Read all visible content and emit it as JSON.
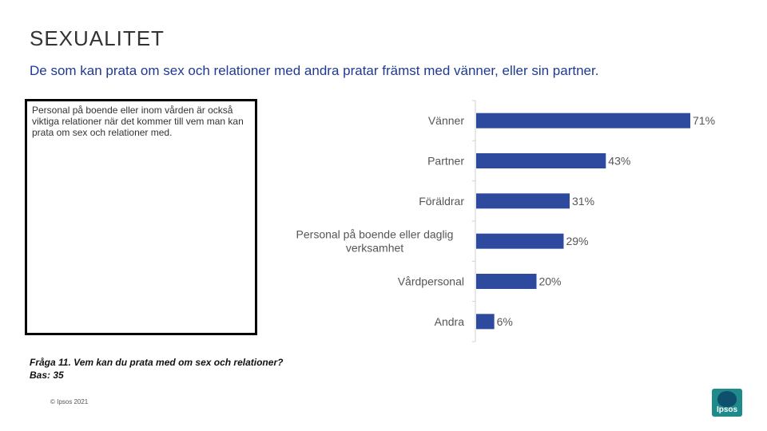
{
  "title": "SEXUALITET",
  "subtitle": "De som kan prata om sex och relationer med andra pratar främst med vänner, eller sin partner.",
  "note": "Personal på boende eller inom vården är också viktiga relationer när det kommer till vem man kan prata om sex och relationer med.",
  "question": {
    "line1": "Fråga 11. Vem kan du prata med om sex och relationer?",
    "line2": "Bas: 35"
  },
  "copyright": "© Ipsos 2021",
  "logo_text": "Ipsos",
  "colors": {
    "bar": "#2e4a9e",
    "subtitle": "#1f3a93",
    "logo": "#1f8a8a"
  },
  "chart_data": {
    "type": "bar",
    "orientation": "horizontal",
    "categories": [
      "Vänner",
      "Partner",
      "Föräldrar",
      "Personal på boende eller daglig verksamhet",
      "Vårdpersonal",
      "Andra"
    ],
    "category_lines": [
      [
        "Vänner"
      ],
      [
        "Partner"
      ],
      [
        "Föräldrar"
      ],
      [
        "Personal på boende eller daglig",
        "verksamhet"
      ],
      [
        "Vårdpersonal"
      ],
      [
        "Andra"
      ]
    ],
    "values": [
      71,
      43,
      31,
      29,
      20,
      6
    ],
    "value_labels": [
      "71%",
      "43%",
      "31%",
      "29%",
      "20%",
      "6%"
    ],
    "unit": "%",
    "xlim": [
      0,
      100
    ],
    "grid": false,
    "legend": "none"
  }
}
